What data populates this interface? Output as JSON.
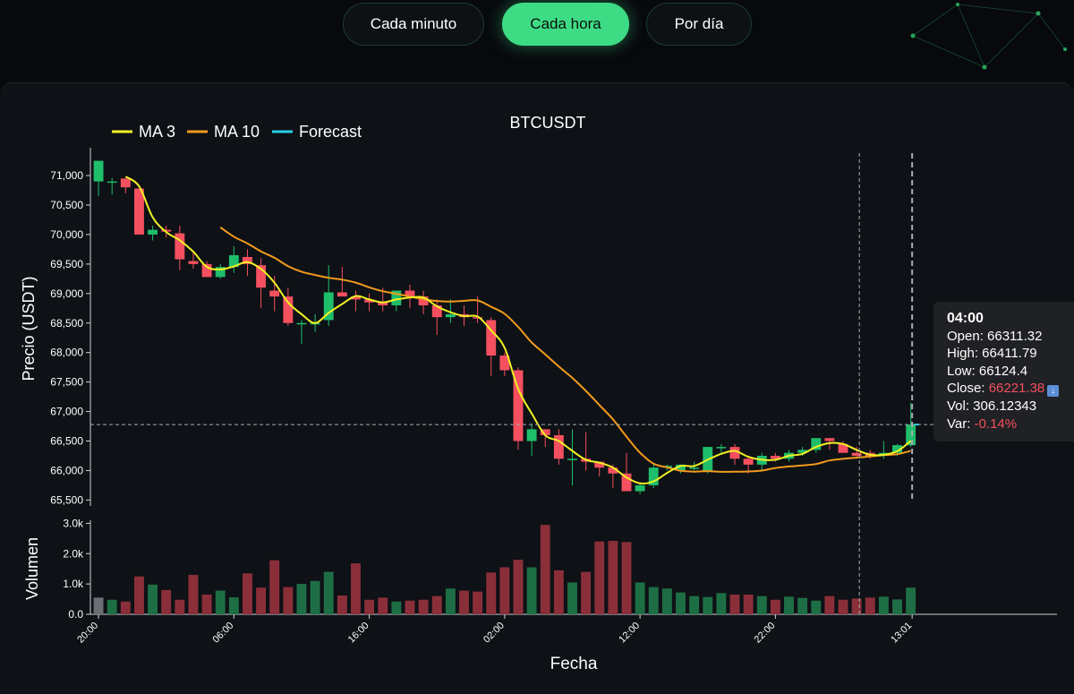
{
  "tabs": [
    {
      "label": "Cada minuto",
      "active": false
    },
    {
      "label": "Cada hora",
      "active": true
    },
    {
      "label": "Por día",
      "active": false
    }
  ],
  "chart_data": {
    "type": "candlestick",
    "title": "BTCUSDT",
    "xlabel": "Fecha",
    "ylabel": "Precio (USDT)",
    "volume_label": "Volumen",
    "legend": [
      "MA 3",
      "MA 10",
      "Forecast"
    ],
    "legend_position": "top-left",
    "colors": {
      "up": "#1fbe6b",
      "down": "#f4505f",
      "ma3": "#f2f224",
      "ma10": "#f29a1d",
      "forecast": "#29d0e6",
      "vol_up": "#1e6e45",
      "vol_down": "#8a2f39",
      "vol_neutral": "#6b6e73"
    },
    "price_ticks": [
      65500,
      66000,
      66500,
      67000,
      67500,
      68000,
      68500,
      69000,
      69500,
      70000,
      70500,
      71000
    ],
    "price_tick_labels": [
      "65,500",
      "66,000",
      "66,500",
      "67,000",
      "67,500",
      "68,000",
      "68,500",
      "69,000",
      "69,500",
      "70,000",
      "70,500",
      "71,000"
    ],
    "ylim": [
      65400,
      71380
    ],
    "volume_ticks": [
      0,
      1000,
      2000,
      3000
    ],
    "volume_tick_labels": [
      "0.0",
      "1.0k",
      "2.0k",
      "3.0k"
    ],
    "volume_ylim": [
      0,
      3100
    ],
    "x_tick_labels": [
      "20:00",
      "06:00",
      "16:00",
      "02:00",
      "12:00",
      "22:00",
      "13:01"
    ],
    "x_tick_index": [
      0,
      10,
      20,
      30,
      40,
      50,
      60.1
    ],
    "x_range": [
      -0.6,
      70.8
    ],
    "candles": [
      {
        "o": 70900,
        "h": 71250,
        "l": 70650,
        "c": 71250
      },
      {
        "o": 70900,
        "h": 70960,
        "l": 70680,
        "c": 70900
      },
      {
        "o": 70950,
        "h": 70950,
        "l": 70700,
        "c": 70800
      },
      {
        "o": 70780,
        "h": 70780,
        "l": 70000,
        "c": 70000
      },
      {
        "o": 70000,
        "h": 70150,
        "l": 69900,
        "c": 70080
      },
      {
        "o": 70080,
        "h": 70150,
        "l": 69950,
        "c": 70050
      },
      {
        "o": 70020,
        "h": 70150,
        "l": 69400,
        "c": 69580
      },
      {
        "o": 69550,
        "h": 69700,
        "l": 69420,
        "c": 69500
      },
      {
        "o": 69500,
        "h": 69550,
        "l": 69300,
        "c": 69280
      },
      {
        "o": 69280,
        "h": 69500,
        "l": 69250,
        "c": 69450
      },
      {
        "o": 69450,
        "h": 69800,
        "l": 69350,
        "c": 69650
      },
      {
        "o": 69620,
        "h": 69750,
        "l": 69300,
        "c": 69500
      },
      {
        "o": 69480,
        "h": 69600,
        "l": 68750,
        "c": 69100
      },
      {
        "o": 69050,
        "h": 69300,
        "l": 68700,
        "c": 68950
      },
      {
        "o": 68950,
        "h": 69100,
        "l": 68450,
        "c": 68500
      },
      {
        "o": 68500,
        "h": 68550,
        "l": 68150,
        "c": 68500
      },
      {
        "o": 68500,
        "h": 68650,
        "l": 68350,
        "c": 68500
      },
      {
        "o": 68550,
        "h": 69480,
        "l": 68450,
        "c": 69020
      },
      {
        "o": 69020,
        "h": 69450,
        "l": 68950,
        "c": 68950
      },
      {
        "o": 68950,
        "h": 69050,
        "l": 68700,
        "c": 68900
      },
      {
        "o": 68900,
        "h": 69000,
        "l": 68700,
        "c": 68850
      },
      {
        "o": 68850,
        "h": 69100,
        "l": 68700,
        "c": 68800
      },
      {
        "o": 68800,
        "h": 69050,
        "l": 68700,
        "c": 69050
      },
      {
        "o": 69050,
        "h": 69150,
        "l": 68750,
        "c": 68950
      },
      {
        "o": 68950,
        "h": 69050,
        "l": 68650,
        "c": 68800
      },
      {
        "o": 68800,
        "h": 68900,
        "l": 68300,
        "c": 68600
      },
      {
        "o": 68600,
        "h": 68900,
        "l": 68500,
        "c": 68650
      },
      {
        "o": 68650,
        "h": 68800,
        "l": 68450,
        "c": 68600
      },
      {
        "o": 68600,
        "h": 68950,
        "l": 68500,
        "c": 68580
      },
      {
        "o": 68550,
        "h": 68600,
        "l": 67600,
        "c": 67950
      },
      {
        "o": 67950,
        "h": 68000,
        "l": 67600,
        "c": 67700
      },
      {
        "o": 67700,
        "h": 67750,
        "l": 66350,
        "c": 66500
      },
      {
        "o": 66500,
        "h": 66800,
        "l": 66250,
        "c": 66700
      },
      {
        "o": 66700,
        "h": 66700,
        "l": 66400,
        "c": 66600
      },
      {
        "o": 66600,
        "h": 66700,
        "l": 66100,
        "c": 66200
      },
      {
        "o": 66200,
        "h": 66700,
        "l": 65750,
        "c": 66200
      },
      {
        "o": 66200,
        "h": 66650,
        "l": 66000,
        "c": 66150
      },
      {
        "o": 66150,
        "h": 66150,
        "l": 65900,
        "c": 66050
      },
      {
        "o": 66050,
        "h": 66100,
        "l": 65700,
        "c": 65950
      },
      {
        "o": 65950,
        "h": 66300,
        "l": 65650,
        "c": 65650
      },
      {
        "o": 65650,
        "h": 65800,
        "l": 65600,
        "c": 65750
      },
      {
        "o": 65750,
        "h": 66100,
        "l": 65700,
        "c": 66050
      },
      {
        "o": 66050,
        "h": 66100,
        "l": 66000,
        "c": 66080
      },
      {
        "o": 66000,
        "h": 66100,
        "l": 65950,
        "c": 66100
      },
      {
        "o": 66050,
        "h": 66150,
        "l": 66000,
        "c": 66050
      },
      {
        "o": 66000,
        "h": 66400,
        "l": 65950,
        "c": 66400
      },
      {
        "o": 66400,
        "h": 66450,
        "l": 66300,
        "c": 66400
      },
      {
        "o": 66400,
        "h": 66450,
        "l": 66100,
        "c": 66200
      },
      {
        "o": 66200,
        "h": 66250,
        "l": 65950,
        "c": 66100
      },
      {
        "o": 66100,
        "h": 66300,
        "l": 66000,
        "c": 66250
      },
      {
        "o": 66250,
        "h": 66300,
        "l": 66150,
        "c": 66200
      },
      {
        "o": 66200,
        "h": 66350,
        "l": 66150,
        "c": 66300
      },
      {
        "o": 66300,
        "h": 66400,
        "l": 66250,
        "c": 66350
      },
      {
        "o": 66350,
        "h": 66500,
        "l": 66300,
        "c": 66550
      },
      {
        "o": 66550,
        "h": 66550,
        "l": 66350,
        "c": 66500
      },
      {
        "o": 66450,
        "h": 66500,
        "l": 66350,
        "c": 66300
      },
      {
        "o": 66300,
        "h": 66400,
        "l": 66200,
        "c": 66250
      },
      {
        "o": 66300,
        "h": 66350,
        "l": 66200,
        "c": 66250
      },
      {
        "o": 66250,
        "h": 66500,
        "l": 66200,
        "c": 66300
      },
      {
        "o": 66300,
        "h": 66450,
        "l": 66250,
        "c": 66430
      },
      {
        "o": 66430,
        "h": 67150,
        "l": 66400,
        "c": 66780
      }
    ],
    "volumes": [
      550,
      480,
      420,
      1250,
      980,
      800,
      480,
      1300,
      650,
      780,
      560,
      1350,
      880,
      1780,
      900,
      1000,
      1100,
      1400,
      620,
      1680,
      480,
      550,
      420,
      450,
      480,
      600,
      850,
      780,
      750,
      1380,
      1550,
      1800,
      1550,
      2950,
      1450,
      1050,
      1400,
      2400,
      2420,
      2380,
      1050,
      900,
      850,
      720,
      600,
      570,
      700,
      650,
      650,
      600,
      480,
      580,
      540,
      450,
      600,
      480,
      520,
      550,
      580,
      490,
      880
    ],
    "volume_neutral_index": [
      0
    ],
    "ma3": [
      null,
      null,
      70983,
      70817,
      70293,
      70043,
      69903,
      69710,
      69453,
      69410,
      69460,
      69533,
      69417,
      69183,
      68850,
      68650,
      68500,
      68673,
      68823,
      68957,
      68900,
      68850,
      68900,
      68933,
      68933,
      68783,
      68683,
      68617,
      68610,
      68377,
      68077,
      67383,
      66967,
      66600,
      66500,
      66333,
      66183,
      66133,
      66050,
      65883,
      65783,
      65817,
      65960,
      66077,
      66077,
      66183,
      66283,
      66333,
      66233,
      66183,
      66183,
      66250,
      66283,
      66400,
      66467,
      66450,
      66350,
      66267,
      66267,
      66327,
      66503
    ],
    "ma10": [
      null,
      null,
      null,
      null,
      null,
      null,
      null,
      null,
      null,
      70123,
      69964,
      69849,
      69715,
      69605,
      69465,
      69370,
      69315,
      69267,
      69235,
      69185,
      69105,
      69040,
      68995,
      68948,
      68904,
      68874,
      68865,
      68875,
      68883,
      68776,
      68656,
      68434,
      68170,
      67970,
      67763,
      67571,
      67351,
      67110,
      66868,
      66575,
      66303,
      66116,
      66054,
      65997,
      65982,
      65990,
      65978,
      65980,
      65984,
      65999,
      66044,
      66069,
      66086,
      66111,
      66171,
      66199,
      66219,
      66240,
      66260,
      66278,
      66333
    ],
    "forecast": {
      "from_index": 60.25,
      "to_index": 60.6,
      "value": 66780
    },
    "current_price_line": 66780,
    "crosshair_index": 56.2,
    "forecast_marker_index": 60.1,
    "tooltip": {
      "time": "04:00",
      "open": "Open: 66311.32",
      "high": "High: 66411.79",
      "low": "Low: 66124.4",
      "close_label": "Close: ",
      "close_value": "66221.38",
      "close_icon": "down-arrow-icon",
      "vol": "Vol: 306.12343",
      "var_label": "Var: ",
      "var_value": "-0.14%"
    }
  }
}
